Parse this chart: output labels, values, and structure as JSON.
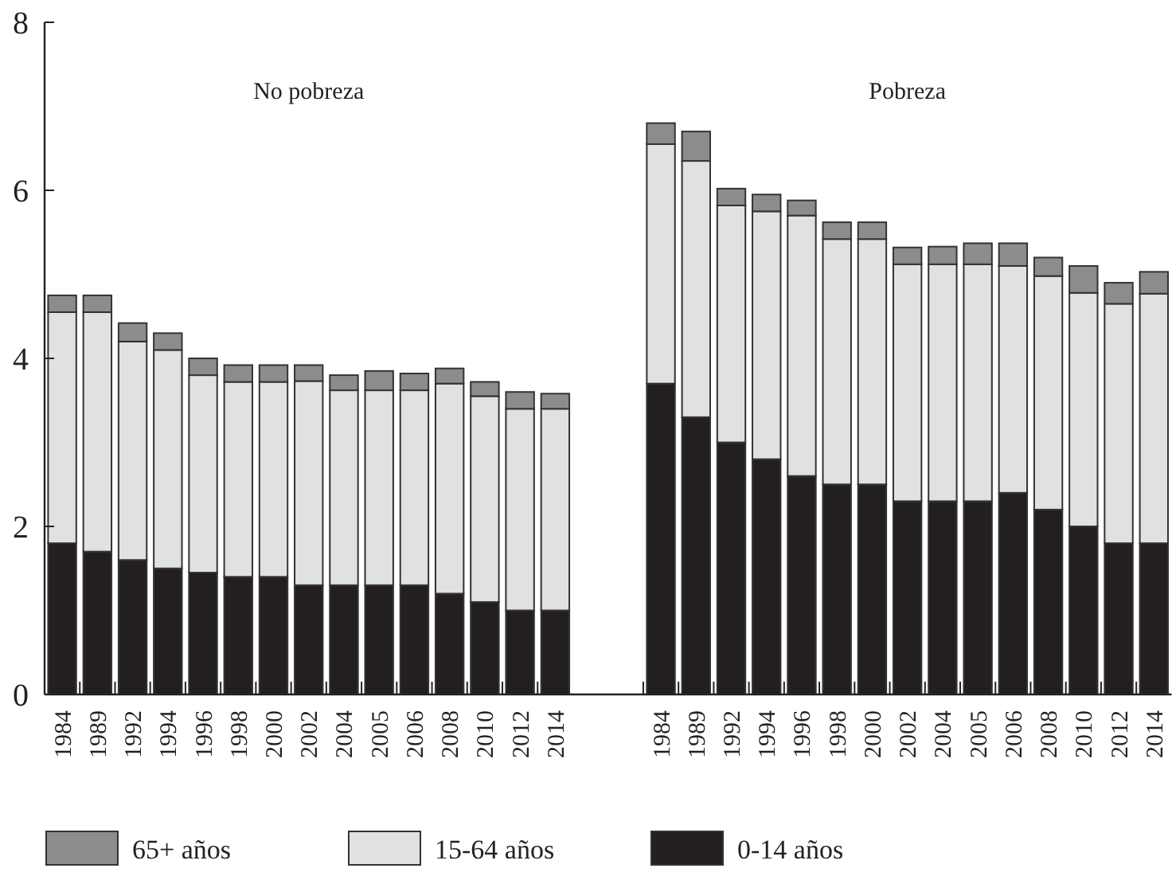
{
  "chart_data": {
    "type": "bar",
    "stacked": true,
    "categories": [
      "1984",
      "1989",
      "1992",
      "1994",
      "1996",
      "1998",
      "2000",
      "2002",
      "2004",
      "2005",
      "2006",
      "2008",
      "2010",
      "2012",
      "2014",
      null,
      null,
      "1984",
      "1989",
      "1992",
      "1994",
      "1996",
      "1998",
      "2000",
      "2002",
      "2004",
      "2005",
      "2006",
      "2008",
      "2010",
      "2012",
      "2014"
    ],
    "series": [
      {
        "name": "0-14 años",
        "color": "#231f20",
        "values": [
          1.8,
          1.7,
          1.6,
          1.5,
          1.45,
          1.4,
          1.4,
          1.3,
          1.3,
          1.3,
          1.3,
          1.2,
          1.1,
          1.0,
          1.0,
          null,
          null,
          3.7,
          3.3,
          3.0,
          2.8,
          2.6,
          2.5,
          2.5,
          2.3,
          2.3,
          2.3,
          2.4,
          2.2,
          2.0,
          1.8,
          1.8
        ]
      },
      {
        "name": "15-64 años",
        "color": "#e0e1e3",
        "values": [
          2.75,
          2.85,
          2.6,
          2.6,
          2.35,
          2.32,
          2.32,
          2.43,
          2.32,
          2.32,
          2.32,
          2.5,
          2.45,
          2.4,
          2.4,
          null,
          null,
          2.85,
          3.05,
          2.82,
          2.95,
          3.1,
          2.92,
          2.92,
          2.82,
          2.82,
          2.82,
          2.7,
          2.78,
          2.78,
          2.85,
          2.97
        ]
      },
      {
        "name": "65+ años",
        "color": "#8c8c8c",
        "values": [
          0.2,
          0.2,
          0.22,
          0.2,
          0.2,
          0.2,
          0.2,
          0.19,
          0.18,
          0.23,
          0.2,
          0.18,
          0.17,
          0.2,
          0.18,
          null,
          null,
          0.25,
          0.35,
          0.2,
          0.2,
          0.18,
          0.2,
          0.2,
          0.2,
          0.21,
          0.25,
          0.27,
          0.22,
          0.32,
          0.25,
          0.26
        ]
      }
    ],
    "ylim": [
      0,
      8
    ],
    "yticks": [
      0,
      2,
      4,
      6,
      8
    ],
    "grid": false,
    "legend": "bottom",
    "annotations": [
      "No pobreza",
      "Pobreza"
    ]
  }
}
